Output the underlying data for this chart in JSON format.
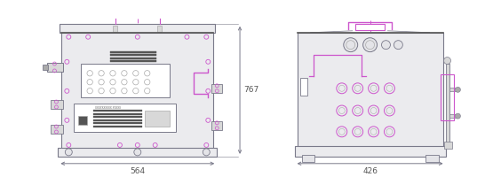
{
  "bg_color": "#ffffff",
  "line_color": "#7a7a8a",
  "purple_color": "#cc55cc",
  "dark_color": "#555555",
  "light_gray": "#d8d8d8",
  "mid_gray": "#aaaaaa",
  "box_fill": "#e4e4e8",
  "body_fill": "#ebebee",
  "white": "#ffffff",
  "label_564": "564",
  "label_426": "426",
  "label_767": "767"
}
